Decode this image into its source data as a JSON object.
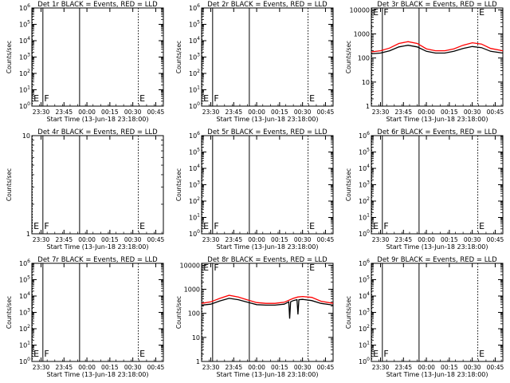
{
  "chart_data": [
    {
      "id": "det1r",
      "type": "line",
      "title": "Det 1r BLACK = Events, RED = LLD",
      "ylabel": "Counts/sec",
      "xlabel": "Start Time (13-Jun-18 23:18:00)",
      "yscale": "log",
      "ylim": [
        1,
        1000000.0
      ],
      "ytick_labels": [
        "10^0",
        "10^1",
        "10^2",
        "10^3",
        "10^4",
        "10^5",
        "10^6"
      ],
      "xlim": [
        23.4,
        24.833
      ],
      "xtick_values": [
        23.5,
        23.75,
        24.0,
        24.25,
        24.5,
        24.75
      ],
      "xtick_labels": [
        "23:30",
        "23:45",
        "00:00",
        "00:15",
        "00:30",
        "00:45"
      ],
      "markers": [
        {
          "label": "E",
          "x": 23.405,
          "style": "dotted"
        },
        {
          "label": "F",
          "x": 23.52,
          "style": "solid"
        },
        {
          "label": "",
          "x": 23.92,
          "style": "solid"
        },
        {
          "label": "E",
          "x": 24.56,
          "style": "dotted"
        }
      ],
      "series": []
    },
    {
      "id": "det2r",
      "type": "line",
      "title": "Det 2r BLACK = Events, RED = LLD",
      "ylabel": "Counts/sec",
      "xlabel": "Start Time (13-Jun-18 23:18:00)",
      "yscale": "log",
      "ylim": [
        1,
        1000000.0
      ],
      "ytick_labels": [
        "10^0",
        "10^1",
        "10^2",
        "10^3",
        "10^4",
        "10^5",
        "10^6"
      ],
      "xlim": [
        23.4,
        24.833
      ],
      "xtick_values": [
        23.5,
        23.75,
        24.0,
        24.25,
        24.5,
        24.75
      ],
      "xtick_labels": [
        "23:30",
        "23:45",
        "00:00",
        "00:15",
        "00:30",
        "00:45"
      ],
      "markers": [
        {
          "label": "E",
          "x": 23.405,
          "style": "dotted"
        },
        {
          "label": "F",
          "x": 23.52,
          "style": "solid"
        },
        {
          "label": "",
          "x": 23.92,
          "style": "solid"
        },
        {
          "label": "E",
          "x": 24.56,
          "style": "dotted"
        }
      ],
      "series": []
    },
    {
      "id": "det3r",
      "type": "line",
      "title": "Det 3r BLACK = Events, RED = LLD",
      "ylabel": "Counts/sec",
      "xlabel": "Start Time (13-Jun-18 23:18:00)",
      "yscale": "log",
      "ylim": [
        1,
        12000
      ],
      "ytick_labels": [
        "1",
        "10",
        "100",
        "1000",
        "10000"
      ],
      "xlim": [
        23.4,
        24.833
      ],
      "xtick_values": [
        23.5,
        23.75,
        24.0,
        24.25,
        24.5,
        24.75
      ],
      "xtick_labels": [
        "23:30",
        "23:45",
        "00:00",
        "00:15",
        "00:30",
        "00:45"
      ],
      "markers": [
        {
          "label": "E",
          "x": 23.405,
          "style": "dotted"
        },
        {
          "label": "F",
          "x": 23.52,
          "style": "solid"
        },
        {
          "label": "",
          "x": 23.92,
          "style": "solid"
        },
        {
          "label": "E",
          "x": 24.56,
          "style": "dotted"
        }
      ],
      "series": [
        {
          "color": "#ff0000",
          "x": [
            23.4,
            23.5,
            23.6,
            23.7,
            23.8,
            23.9,
            24.0,
            24.1,
            24.2,
            24.3,
            24.4,
            24.5,
            24.6,
            24.7,
            24.833
          ],
          "y": [
            180,
            200,
            260,
            400,
            480,
            400,
            240,
            200,
            200,
            240,
            340,
            430,
            380,
            250,
            200
          ]
        },
        {
          "color": "#000000",
          "x": [
            23.4,
            23.5,
            23.6,
            23.7,
            23.8,
            23.9,
            24.0,
            24.1,
            24.2,
            24.3,
            24.4,
            24.5,
            24.6,
            24.7,
            24.833
          ],
          "y": [
            150,
            160,
            200,
            290,
            340,
            290,
            190,
            160,
            160,
            190,
            250,
            300,
            270,
            190,
            160
          ]
        }
      ]
    },
    {
      "id": "det4r",
      "type": "line",
      "title": "Det 4r BLACK = Events, RED = LLD",
      "ylabel": "Counts/sec",
      "xlabel": "Start Time (13-Jun-18 23:18:00)",
      "yscale": "log",
      "ylim": [
        1,
        10
      ],
      "ytick_labels": [
        "1",
        "10"
      ],
      "xlim": [
        23.4,
        24.833
      ],
      "xtick_values": [
        23.5,
        23.75,
        24.0,
        24.25,
        24.5,
        24.75
      ],
      "xtick_labels": [
        "23:30",
        "23:45",
        "00:00",
        "00:15",
        "00:30",
        "00:45"
      ],
      "markers": [
        {
          "label": "E",
          "x": 23.405,
          "style": "dotted"
        },
        {
          "label": "F",
          "x": 23.52,
          "style": "solid"
        },
        {
          "label": "",
          "x": 23.92,
          "style": "solid"
        },
        {
          "label": "E",
          "x": 24.56,
          "style": "dotted"
        }
      ],
      "series": []
    },
    {
      "id": "det5r",
      "type": "line",
      "title": "Det 5r BLACK = Events, RED = LLD",
      "ylabel": "Counts/sec",
      "xlabel": "Start Time (13-Jun-18 23:18:00)",
      "yscale": "log",
      "ylim": [
        1,
        1000000.0
      ],
      "ytick_labels": [
        "10^0",
        "10^1",
        "10^2",
        "10^3",
        "10^4",
        "10^5",
        "10^6"
      ],
      "xlim": [
        23.4,
        24.833
      ],
      "xtick_values": [
        23.5,
        23.75,
        24.0,
        24.25,
        24.5,
        24.75
      ],
      "xtick_labels": [
        "23:30",
        "23:45",
        "00:00",
        "00:15",
        "00:30",
        "00:45"
      ],
      "markers": [
        {
          "label": "E",
          "x": 23.405,
          "style": "dotted"
        },
        {
          "label": "F",
          "x": 23.52,
          "style": "solid"
        },
        {
          "label": "",
          "x": 23.92,
          "style": "solid"
        },
        {
          "label": "E",
          "x": 24.56,
          "style": "dotted"
        }
      ],
      "series": []
    },
    {
      "id": "det6r",
      "type": "line",
      "title": "Det 6r BLACK = Events, RED = LLD",
      "ylabel": "Counts/sec",
      "xlabel": "Start Time (13-Jun-18 23:18:00)",
      "yscale": "log",
      "ylim": [
        1,
        1000000.0
      ],
      "ytick_labels": [
        "10^0",
        "10^1",
        "10^2",
        "10^3",
        "10^4",
        "10^5",
        "10^6"
      ],
      "xlim": [
        23.4,
        24.833
      ],
      "xtick_values": [
        23.5,
        23.75,
        24.0,
        24.25,
        24.5,
        24.75
      ],
      "xtick_labels": [
        "23:30",
        "23:45",
        "00:00",
        "00:15",
        "00:30",
        "00:45"
      ],
      "markers": [
        {
          "label": "E",
          "x": 23.405,
          "style": "dotted"
        },
        {
          "label": "F",
          "x": 23.52,
          "style": "solid"
        },
        {
          "label": "",
          "x": 23.92,
          "style": "solid"
        },
        {
          "label": "E",
          "x": 24.56,
          "style": "dotted"
        }
      ],
      "series": []
    },
    {
      "id": "det7r",
      "type": "line",
      "title": "Det 7r BLACK = Events, RED = LLD",
      "ylabel": "Counts/sec",
      "xlabel": "Start Time (13-Jun-18 23:18:00)",
      "yscale": "log",
      "ylim": [
        1,
        1000000.0
      ],
      "ytick_labels": [
        "10^0",
        "10^1",
        "10^2",
        "10^3",
        "10^4",
        "10^5",
        "10^6"
      ],
      "xlim": [
        23.4,
        24.833
      ],
      "xtick_values": [
        23.5,
        23.75,
        24.0,
        24.25,
        24.5,
        24.75
      ],
      "xtick_labels": [
        "23:30",
        "23:45",
        "00:00",
        "00:15",
        "00:30",
        "00:45"
      ],
      "markers": [
        {
          "label": "E",
          "x": 23.405,
          "style": "dotted"
        },
        {
          "label": "F",
          "x": 23.52,
          "style": "solid"
        },
        {
          "label": "",
          "x": 23.92,
          "style": "solid"
        },
        {
          "label": "E",
          "x": 24.56,
          "style": "dotted"
        }
      ],
      "series": []
    },
    {
      "id": "det8r",
      "type": "line",
      "title": "Det 8r BLACK = Events, RED = LLD",
      "ylabel": "Counts/sec",
      "xlabel": "Start Time (13-Jun-18 23:18:00)",
      "yscale": "log",
      "ylim": [
        1,
        12000
      ],
      "ytick_labels": [
        "1",
        "10",
        "100",
        "1000",
        "10000"
      ],
      "xlim": [
        23.4,
        24.833
      ],
      "xtick_values": [
        23.5,
        23.75,
        24.0,
        24.25,
        24.5,
        24.75
      ],
      "xtick_labels": [
        "23:30",
        "23:45",
        "00:00",
        "00:15",
        "00:30",
        "00:45"
      ],
      "markers": [
        {
          "label": "E",
          "x": 23.405,
          "style": "dotted"
        },
        {
          "label": "F",
          "x": 23.52,
          "style": "solid"
        },
        {
          "label": "",
          "x": 23.92,
          "style": "solid"
        },
        {
          "label": "E",
          "x": 24.56,
          "style": "dotted"
        }
      ],
      "series": [
        {
          "color": "#ff0000",
          "x": [
            23.4,
            23.5,
            23.6,
            23.7,
            23.8,
            23.9,
            24.0,
            24.1,
            24.2,
            24.3,
            24.4,
            24.45,
            24.5,
            24.6,
            24.7,
            24.833
          ],
          "y": [
            260,
            300,
            420,
            560,
            480,
            360,
            280,
            260,
            260,
            290,
            420,
            480,
            500,
            460,
            320,
            260
          ]
        },
        {
          "color": "#000000",
          "x": [
            23.4,
            23.5,
            23.6,
            23.7,
            23.8,
            23.9,
            24.0,
            24.1,
            24.2,
            24.3,
            24.35,
            24.36,
            24.37,
            24.4,
            24.44,
            24.45,
            24.46,
            24.5,
            24.6,
            24.7,
            24.833
          ],
          "y": [
            220,
            240,
            330,
            420,
            370,
            290,
            230,
            220,
            220,
            240,
            300,
            60,
            300,
            340,
            370,
            90,
            370,
            380,
            340,
            260,
            220
          ]
        }
      ]
    },
    {
      "id": "det9r",
      "type": "line",
      "title": "Det 9r BLACK = Events, RED = LLD",
      "ylabel": "Counts/sec",
      "xlabel": "Start Time (13-Jun-18 23:18:00)",
      "yscale": "log",
      "ylim": [
        1,
        1000000.0
      ],
      "ytick_labels": [
        "10^0",
        "10^1",
        "10^2",
        "10^3",
        "10^4",
        "10^5",
        "10^6"
      ],
      "xlim": [
        23.4,
        24.833
      ],
      "xtick_values": [
        23.5,
        23.75,
        24.0,
        24.25,
        24.5,
        24.75
      ],
      "xtick_labels": [
        "23:30",
        "23:45",
        "00:00",
        "00:15",
        "00:30",
        "00:45"
      ],
      "markers": [
        {
          "label": "E",
          "x": 23.405,
          "style": "dotted"
        },
        {
          "label": "F",
          "x": 23.52,
          "style": "solid"
        },
        {
          "label": "",
          "x": 23.92,
          "style": "solid"
        },
        {
          "label": "E",
          "x": 24.56,
          "style": "dotted"
        }
      ],
      "series": []
    }
  ]
}
